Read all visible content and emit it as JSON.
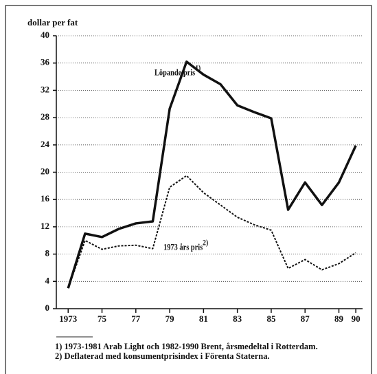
{
  "chart_data": {
    "type": "line",
    "y_axis_label": "dollar per fat",
    "x": [
      1973,
      1974,
      1975,
      1976,
      1977,
      1978,
      1979,
      1980,
      1981,
      1982,
      1983,
      1984,
      1985,
      1986,
      1987,
      1988,
      1989,
      1990
    ],
    "series": [
      {
        "name": "Löpande pris",
        "note_ref": "1)",
        "color": "#111111",
        "style": "solid",
        "values": [
          3,
          11,
          10.5,
          11.7,
          12.5,
          12.8,
          29.3,
          36.2,
          34.3,
          32.9,
          29.8,
          28.8,
          27.9,
          14.5,
          18.5,
          15.2,
          18.5,
          23.9
        ]
      },
      {
        "name": "1973 års pris",
        "note_ref": "2)",
        "color": "#111111",
        "style": "dotted",
        "values": [
          3,
          10,
          8.7,
          9.2,
          9.3,
          8.8,
          17.8,
          19.5,
          17,
          15.2,
          13.4,
          12.3,
          11.5,
          5.9,
          7.2,
          5.7,
          6.6,
          8.2
        ]
      }
    ],
    "xlim": [
      1972.3,
      1990.4
    ],
    "xticks": [
      {
        "value": 1973,
        "label": "1973"
      },
      {
        "value": 1975,
        "label": "75"
      },
      {
        "value": 1977,
        "label": "77"
      },
      {
        "value": 1979,
        "label": "79"
      },
      {
        "value": 1981,
        "label": "81"
      },
      {
        "value": 1983,
        "label": "83"
      },
      {
        "value": 1985,
        "label": "85"
      },
      {
        "value": 1987,
        "label": "87"
      },
      {
        "value": 1989,
        "label": "89"
      },
      {
        "value": 1990,
        "label": "90"
      }
    ],
    "ylim": [
      0,
      40
    ],
    "yticks": [
      0,
      4,
      8,
      12,
      16,
      20,
      24,
      28,
      32,
      36,
      40
    ],
    "grid": true,
    "footnotes": [
      "1) 1973-1981 Arab Light och 1982-1990 Brent, årsmedeltal i Rotterdam.",
      "2) Deflaterad med konsumentprisindex i Förenta Staterna."
    ]
  }
}
